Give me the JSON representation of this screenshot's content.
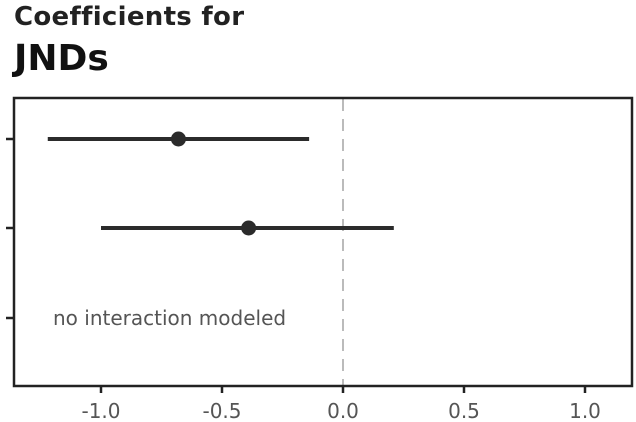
{
  "chart_data": {
    "type": "scatter",
    "title": "JNDs",
    "subtitle": "Coefficients for",
    "xlabel": "",
    "ylabel": "",
    "xlim": [
      -1.35,
      1.2
    ],
    "xticks": [
      -1.0,
      -0.5,
      0.0,
      0.5,
      1.0
    ],
    "xtick_labels": [
      "-1.0",
      "-0.5",
      "0.0",
      "0.5",
      "1.0"
    ],
    "reference_line": 0.0,
    "rows": 3,
    "points": [
      {
        "row": 1,
        "estimate": -0.68,
        "low": -1.22,
        "high": -0.14
      },
      {
        "row": 2,
        "estimate": -0.39,
        "low": -1.0,
        "high": 0.21
      }
    ],
    "annotations": [
      {
        "row": 3,
        "text": "no interaction modeled"
      }
    ],
    "colors": {
      "point": "#2b2b2b",
      "frame": "#222222",
      "reference": "#bbbbbb",
      "text": "#555555"
    }
  }
}
